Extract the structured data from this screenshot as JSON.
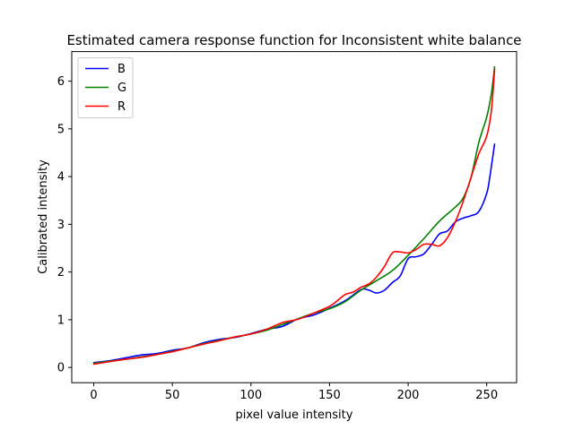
{
  "chart_data": {
    "type": "line",
    "title": "Estimated camera response function for Inconsistent white balance",
    "xlabel": "pixel value intensity",
    "ylabel": "Calibrated intensity",
    "xlim": [
      -14,
      269
    ],
    "ylim": [
      -0.32,
      6.62
    ],
    "xticks": [
      0,
      50,
      100,
      150,
      200,
      250
    ],
    "yticks": [
      0,
      1,
      2,
      3,
      4,
      5,
      6
    ],
    "grid": false,
    "legend_position": "top-left",
    "series": [
      {
        "name": "B",
        "color": "#0000ff",
        "x": [
          0,
          10,
          20,
          30,
          40,
          50,
          60,
          70,
          80,
          90,
          100,
          110,
          120,
          130,
          140,
          150,
          160,
          170,
          175,
          180,
          185,
          190,
          195,
          200,
          205,
          210,
          215,
          220,
          225,
          230,
          235,
          240,
          245,
          250,
          252,
          255
        ],
        "y": [
          0.1,
          0.14,
          0.2,
          0.26,
          0.29,
          0.36,
          0.41,
          0.52,
          0.59,
          0.63,
          0.71,
          0.8,
          0.86,
          1.02,
          1.1,
          1.24,
          1.4,
          1.63,
          1.62,
          1.56,
          1.62,
          1.78,
          1.92,
          2.28,
          2.32,
          2.38,
          2.58,
          2.8,
          2.86,
          3.05,
          3.13,
          3.18,
          3.27,
          3.65,
          4.0,
          4.68
        ]
      },
      {
        "name": "G",
        "color": "#008000",
        "x": [
          0,
          10,
          20,
          30,
          40,
          50,
          60,
          70,
          80,
          90,
          100,
          110,
          120,
          130,
          140,
          150,
          160,
          170,
          180,
          190,
          200,
          210,
          220,
          230,
          235,
          240,
          245,
          250,
          253,
          255
        ],
        "y": [
          0.09,
          0.13,
          0.17,
          0.22,
          0.27,
          0.34,
          0.41,
          0.5,
          0.57,
          0.64,
          0.7,
          0.78,
          0.9,
          1.02,
          1.14,
          1.23,
          1.38,
          1.62,
          1.82,
          2.03,
          2.35,
          2.7,
          3.07,
          3.36,
          3.55,
          3.98,
          4.72,
          5.25,
          5.75,
          6.3
        ]
      },
      {
        "name": "R",
        "color": "#ff0000",
        "x": [
          0,
          10,
          20,
          30,
          40,
          50,
          60,
          70,
          80,
          90,
          100,
          110,
          120,
          130,
          140,
          150,
          155,
          160,
          165,
          170,
          175,
          180,
          185,
          190,
          195,
          200,
          205,
          210,
          215,
          220,
          225,
          230,
          235,
          240,
          245,
          250,
          253,
          255
        ],
        "y": [
          0.07,
          0.12,
          0.17,
          0.21,
          0.27,
          0.33,
          0.41,
          0.49,
          0.56,
          0.64,
          0.7,
          0.8,
          0.94,
          1.01,
          1.14,
          1.28,
          1.4,
          1.53,
          1.58,
          1.68,
          1.75,
          1.9,
          2.12,
          2.4,
          2.42,
          2.4,
          2.47,
          2.58,
          2.58,
          2.55,
          2.72,
          3.05,
          3.48,
          3.98,
          4.48,
          4.85,
          5.4,
          6.25
        ]
      }
    ]
  }
}
